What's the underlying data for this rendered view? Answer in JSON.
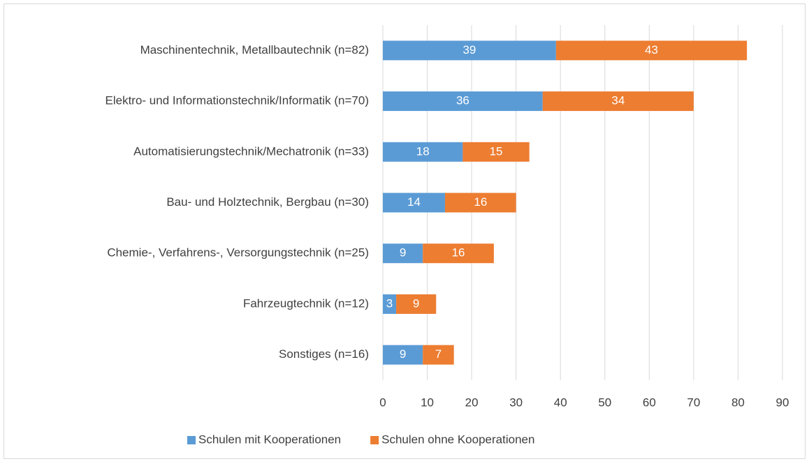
{
  "chart_data": {
    "type": "bar",
    "orientation": "horizontal",
    "stacked": true,
    "categories": [
      "Maschinentechnik, Metallbautechnik (n=82)",
      "Elektro- und Informationstechnik/Informatik (n=70)",
      "Automatisierungstechnik/Mechatronik (n=33)",
      "Bau- und Holztechnik, Bergbau (n=30)",
      "Chemie-, Verfahrens-, Versorgungstechnik (n=25)",
      "Fahrzeugtechnik (n=12)",
      "Sonstiges (n=16)"
    ],
    "series": [
      {
        "name": "Schulen mit Kooperationen",
        "color": "#5b9bd5",
        "values": [
          39,
          36,
          18,
          14,
          9,
          3,
          9
        ]
      },
      {
        "name": "Schulen ohne Kooperationen",
        "color": "#ed7d31",
        "values": [
          43,
          34,
          15,
          16,
          16,
          9,
          7
        ]
      }
    ],
    "xlim": [
      0,
      90
    ],
    "xticks": [
      0,
      10,
      20,
      30,
      40,
      50,
      60,
      70,
      80,
      90
    ],
    "grid": true,
    "legend": "bottom"
  }
}
